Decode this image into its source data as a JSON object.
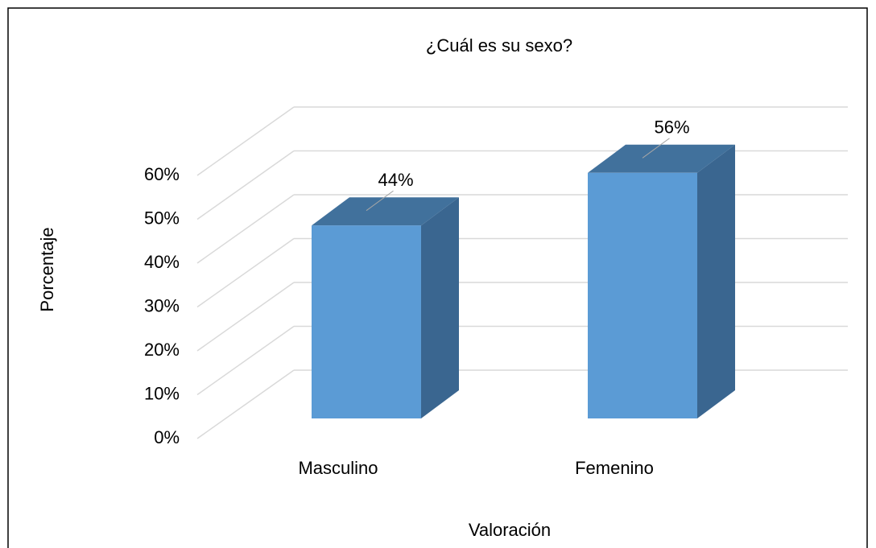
{
  "chart_data": {
    "type": "bar3d",
    "title": "¿Cuál es su sexo?",
    "x_label": "Valoración",
    "y_label": "Porcentaje",
    "categories": [
      "Masculino",
      "Femenino"
    ],
    "values": [
      44,
      56
    ],
    "value_labels": [
      "44%",
      "56%"
    ],
    "color": "#5b9bd5",
    "ylim": [
      0,
      60
    ],
    "yticks": [
      {
        "value": 0,
        "label": "0%"
      },
      {
        "value": 10,
        "label": "10%"
      },
      {
        "value": 20,
        "label": "20%"
      },
      {
        "value": 30,
        "label": "30%"
      },
      {
        "value": 40,
        "label": "40%"
      },
      {
        "value": 50,
        "label": "50%"
      },
      {
        "value": 60,
        "label": "60%"
      }
    ],
    "grid": true
  }
}
